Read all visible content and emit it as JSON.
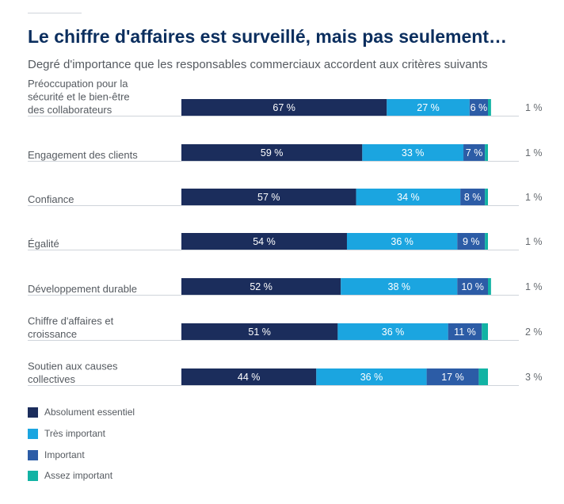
{
  "title": "Le chiffre d'affaires est surveillé, mais pas seulement…",
  "subtitle": "Degré d'importance que les responsables commerciaux accordent aux critères suivants",
  "colors": {
    "absolument": "#1b2d5c",
    "tres": "#1ba5e0",
    "important": "#2c5ca6",
    "assez": "#12b3a4"
  },
  "chart_data": {
    "type": "bar",
    "orientation": "horizontal",
    "stacked": true,
    "unit": "%",
    "categories": [
      [
        "Préoccupation pour la",
        "sécurité et le bien-être",
        "des collaborateurs"
      ],
      [
        "Engagement des clients"
      ],
      [
        "Confiance"
      ],
      [
        "Égalité"
      ],
      [
        "Développement durable"
      ],
      [
        "Chiffre d'affaires et",
        "croissance"
      ],
      [
        "Soutien aux causes",
        "collectives"
      ]
    ],
    "series": [
      {
        "name": "Absolument essentiel",
        "values": [
          67,
          59,
          57,
          54,
          52,
          51,
          44
        ],
        "labels": [
          "67 %",
          "59 %",
          "57 %",
          "54 %",
          "52 %",
          "51 %",
          "44 %"
        ]
      },
      {
        "name": "Très important",
        "values": [
          27,
          33,
          34,
          36,
          38,
          36,
          36
        ],
        "labels": [
          "27 %",
          "33 %",
          "34 %",
          "36 %",
          "38 %",
          "36 %",
          "36 %"
        ]
      },
      {
        "name": "Important",
        "values": [
          6,
          7,
          8,
          9,
          10,
          11,
          17
        ],
        "labels": [
          "6 %",
          "7 %",
          "8 %",
          "9 %",
          "10 %",
          "11 %",
          "17 %"
        ]
      },
      {
        "name": "Assez important",
        "values": [
          1,
          1,
          1,
          1,
          1,
          2,
          3
        ],
        "labels": [
          "1 %",
          "1 %",
          "1 %",
          "1 %",
          "1 %",
          "2 %",
          "3 %"
        ]
      }
    ],
    "legend": [
      "Absolument essentiel",
      "Très important",
      "Important",
      "Assez important"
    ],
    "legend_position": "bottom-left"
  }
}
